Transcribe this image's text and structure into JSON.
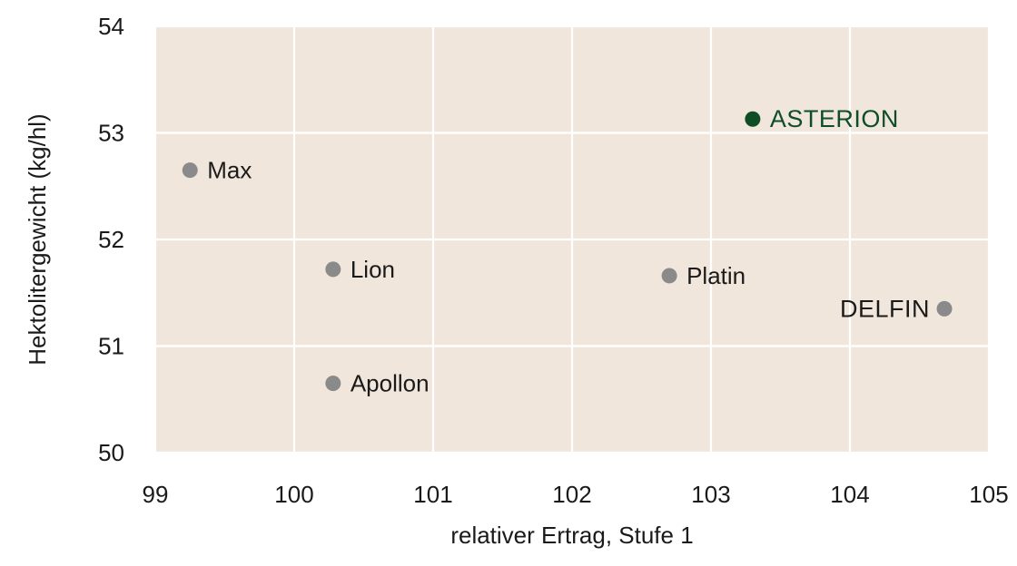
{
  "chart_data": {
    "type": "scatter",
    "title": "",
    "xlabel": "relativer Ertrag, Stufe 1",
    "ylabel": "Hektolitergewicht (kg/hl)",
    "xlim": [
      99,
      105
    ],
    "ylim": [
      50,
      54
    ],
    "x_ticks": [
      "99",
      "100",
      "101",
      "102",
      "103",
      "104",
      "105"
    ],
    "y_ticks": [
      "50",
      "51",
      "52",
      "53",
      "54"
    ],
    "grid": true,
    "colors": {
      "plot_background": "#f1e6dc",
      "grid": "#ffffff",
      "point_default": "#8a8a8a",
      "point_highlight": "#0f4d24",
      "label_default": "#1a1a1a",
      "label_highlight": "#0f4d24"
    },
    "points": [
      {
        "label": "Max",
        "x": 99.25,
        "y": 52.65,
        "label_side": "right",
        "highlight": false,
        "emphasis": false
      },
      {
        "label": "Lion",
        "x": 100.28,
        "y": 51.72,
        "label_side": "right",
        "highlight": false,
        "emphasis": false
      },
      {
        "label": "Apollon",
        "x": 100.28,
        "y": 50.65,
        "label_side": "right",
        "highlight": false,
        "emphasis": false
      },
      {
        "label": "Platin",
        "x": 102.7,
        "y": 51.66,
        "label_side": "right",
        "highlight": false,
        "emphasis": false
      },
      {
        "label": "ASTERION",
        "x": 103.3,
        "y": 53.13,
        "label_side": "right",
        "highlight": true,
        "emphasis": true
      },
      {
        "label": "DELFIN",
        "x": 104.68,
        "y": 51.35,
        "label_side": "left",
        "highlight": false,
        "emphasis": true
      }
    ]
  }
}
